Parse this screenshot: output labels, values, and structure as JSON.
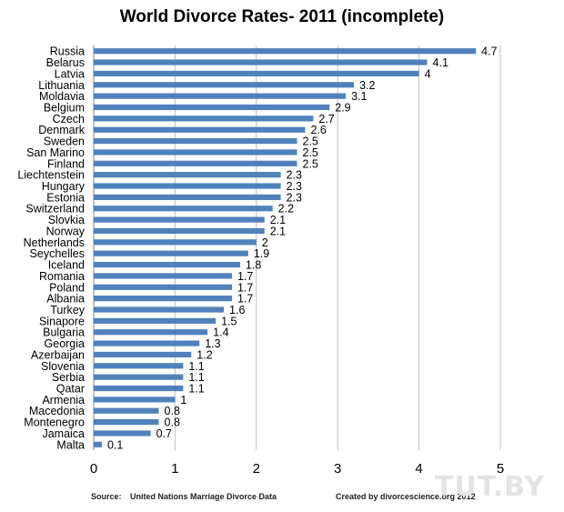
{
  "chart_data": {
    "type": "bar",
    "orientation": "horizontal",
    "title": "World Divorce Rates- 2011 (incomplete)",
    "xlabel": "",
    "ylabel": "",
    "xlim": [
      0,
      5
    ],
    "x_ticks": [
      "0",
      "1",
      "2",
      "3",
      "4",
      "5"
    ],
    "grid": "vertical",
    "bar_color": "#4f81bd",
    "categories": [
      "Russia",
      "Belarus",
      "Latvia",
      "Lithuania",
      "Moldavia",
      "Belgium",
      "Czech",
      "Denmark",
      "Sweden",
      "San Marino",
      "Finland",
      "Liechtenstein",
      "Hungary",
      "Estonia",
      "Switzerland",
      "Slovkia",
      "Norway",
      "Netherlands",
      "Seychelles",
      "Iceland",
      "Romania",
      "Poland",
      "Albania",
      "Turkey",
      "Sinapore",
      "Bulgaria",
      "Georgia",
      "Azerbaijan",
      "Slovenia",
      "Serbia",
      "Qatar",
      "Armenia",
      "Macedonia",
      "Montenegro",
      "Jamaica",
      "Malta"
    ],
    "values": [
      4.7,
      4.1,
      4,
      3.2,
      3.1,
      2.9,
      2.7,
      2.6,
      2.5,
      2.5,
      2.5,
      2.3,
      2.3,
      2.3,
      2.2,
      2.1,
      2.1,
      2,
      1.9,
      1.8,
      1.7,
      1.7,
      1.7,
      1.6,
      1.5,
      1.4,
      1.3,
      1.2,
      1.1,
      1.1,
      1.1,
      1,
      0.8,
      0.8,
      0.7,
      0.1
    ],
    "value_labels": [
      "4.7",
      "4.1",
      "4",
      "3.2",
      "3.1",
      "2.9",
      "2.7",
      "2.6",
      "2.5",
      "2.5",
      "2.5",
      "2.3",
      "2.3",
      "2.3",
      "2.2",
      "2.1",
      "2.1",
      "2",
      "1.9",
      "1.8",
      "1.7",
      "1.7",
      "1.7",
      "1.6",
      "1.5",
      "1.4",
      "1.3",
      "1.2",
      "1.1",
      "1.1",
      "1.1",
      "1",
      "0.8",
      "0.8",
      "0.7",
      "0.1"
    ]
  },
  "footer": {
    "source_label": "Source:",
    "source_text": "United Nations Marriage Divorce Data",
    "credit_text": "Created by divorcescience.org 2012"
  },
  "watermark": "TUT.BY"
}
